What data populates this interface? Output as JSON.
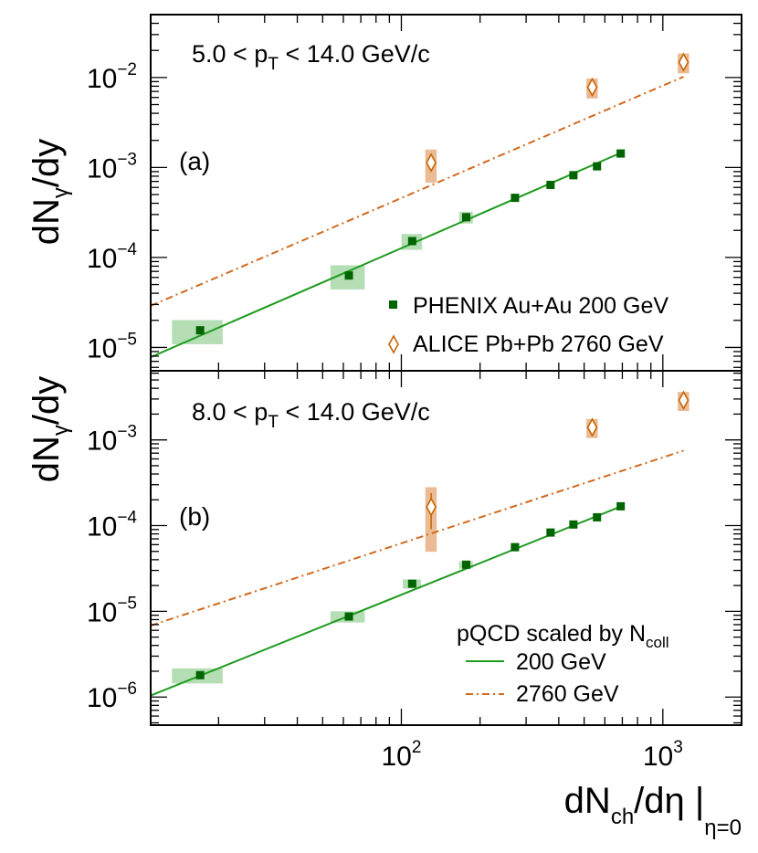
{
  "chart_data": {
    "type": "scatter",
    "x_axis": {
      "label": "dN",
      "label_sub": "ch",
      "label_mid": "/dη |",
      "label_sub2": "η=0",
      "scale": "log",
      "xlim": [
        11,
        2000
      ],
      "major_tick_labels": [
        {
          "value": 100,
          "base": "10",
          "exp": "2"
        },
        {
          "value": 1000,
          "base": "10",
          "exp": "3"
        }
      ]
    },
    "legend": {
      "phenix": "PHENIX Au+Au 200 GeV",
      "alice": "ALICE Pb+Pb 2760 GeV",
      "pqcd_title_main": "pQCD scaled by N",
      "pqcd_title_sub": "coll",
      "pqcd_200": "200 GeV",
      "pqcd_2760": "2760 GeV",
      "phenix_color": "#006400",
      "alice_color": "#c86400",
      "line200_color": "#1e9b1e",
      "line2760_color": "#d2691e",
      "syst_green": "#a8d8a8",
      "syst_orange": "#e8b48a"
    },
    "panels": [
      {
        "id": "a",
        "label": "(a)",
        "cut_prefix": "5.0 < p",
        "cut_sub": "T",
        "cut_suffix": " < 14.0 GeV/c",
        "ylabel_main": "dN",
        "ylabel_sub": "γ",
        "ylabel_suffix": "/dy",
        "y_scale": "log",
        "ylim": [
          5.5e-06,
          0.05
        ],
        "y_tick_labels": [
          {
            "value": 1e-05,
            "base": "10",
            "exp": "−5"
          },
          {
            "value": 0.0001,
            "base": "10",
            "exp": "−4"
          },
          {
            "value": 0.001,
            "base": "10",
            "exp": "−3"
          },
          {
            "value": 0.01,
            "base": "10",
            "exp": "−2"
          }
        ],
        "series": [
          {
            "name": "PHENIX Au+Au 200 GeV",
            "x": [
              17,
              63,
              110,
              177,
              272,
              372,
              455,
              560,
              690
            ],
            "y": [
              1.55e-05,
              6.3e-05,
              0.000152,
              0.00028,
              0.00046,
              0.00064,
              0.00082,
              0.00103,
              0.00143
            ],
            "syst_x_frac": [
              0.22,
              0.15,
              0.09,
              0.06,
              0.0,
              0.0,
              0.0,
              0.0,
              0.0
            ],
            "syst_y_frac": [
              0.3,
              0.3,
              0.2,
              0.15,
              0.0,
              0.0,
              0.0,
              0.0,
              0.0
            ]
          },
          {
            "name": "ALICE Pb+Pb 2760 GeV",
            "x": [
              130,
              537,
              1200
            ],
            "y": [
              0.00113,
              0.0078,
              0.0148
            ],
            "syst_x_frac": [
              0.05,
              0.05,
              0.05
            ],
            "syst_y_frac": [
              0.4,
              0.25,
              0.25
            ]
          }
        ],
        "lines": [
          {
            "name": "200 GeV",
            "style": "solid",
            "x": [
              11,
              700
            ],
            "y": [
              7.8e-06,
              0.00148
            ]
          },
          {
            "name": "2760 GeV",
            "style": "dashdot",
            "x": [
              11,
              1200
            ],
            "y": [
              2.9e-05,
              0.0102
            ]
          }
        ]
      },
      {
        "id": "b",
        "label": "(b)",
        "cut_prefix": "8.0 < p",
        "cut_sub": "T",
        "cut_suffix": " < 14.0 GeV/c",
        "ylabel_main": "dN",
        "ylabel_sub": "γ",
        "ylabel_suffix": "/dy",
        "y_scale": "log",
        "ylim": [
          4.7e-07,
          0.0064
        ],
        "y_tick_labels": [
          {
            "value": 1e-06,
            "base": "10",
            "exp": "−6"
          },
          {
            "value": 1e-05,
            "base": "10",
            "exp": "−5"
          },
          {
            "value": 0.0001,
            "base": "10",
            "exp": "−4"
          },
          {
            "value": 0.001,
            "base": "10",
            "exp": "−3"
          }
        ],
        "series": [
          {
            "name": "PHENIX Au+Au 200 GeV",
            "x": [
              17,
              63,
              110,
              177,
              272,
              372,
              455,
              560,
              690
            ],
            "y": [
              1.8e-06,
              8.7e-06,
              2.1e-05,
              3.5e-05,
              5.6e-05,
              8.3e-05,
              0.000103,
              0.000125,
              0.000168
            ],
            "syst_x_frac": [
              0.22,
              0.15,
              0.08,
              0.06,
              0.0,
              0.0,
              0.0,
              0.0,
              0.0
            ],
            "syst_y_frac": [
              0.2,
              0.15,
              0.12,
              0.1,
              0.0,
              0.0,
              0.0,
              0.0,
              0.0
            ]
          },
          {
            "name": "ALICE Pb+Pb 2760 GeV",
            "x": [
              130,
              537,
              1200
            ],
            "y": [
              0.000165,
              0.0014,
              0.0029
            ],
            "syst_x_frac": [
              0.05,
              0.05,
              0.05
            ],
            "syst_y_frac": [
              0.7,
              0.25,
              0.25
            ],
            "stat_y_frac": [
              0.45,
              0.0,
              0.0
            ]
          }
        ],
        "lines": [
          {
            "name": "200 GeV",
            "style": "solid",
            "x": [
              11,
              700
            ],
            "y": [
              1.04e-06,
              0.00017
            ]
          },
          {
            "name": "2760 GeV",
            "style": "dashdot",
            "x": [
              11,
              1200
            ],
            "y": [
              6.8e-06,
              0.00075
            ]
          }
        ]
      }
    ]
  }
}
